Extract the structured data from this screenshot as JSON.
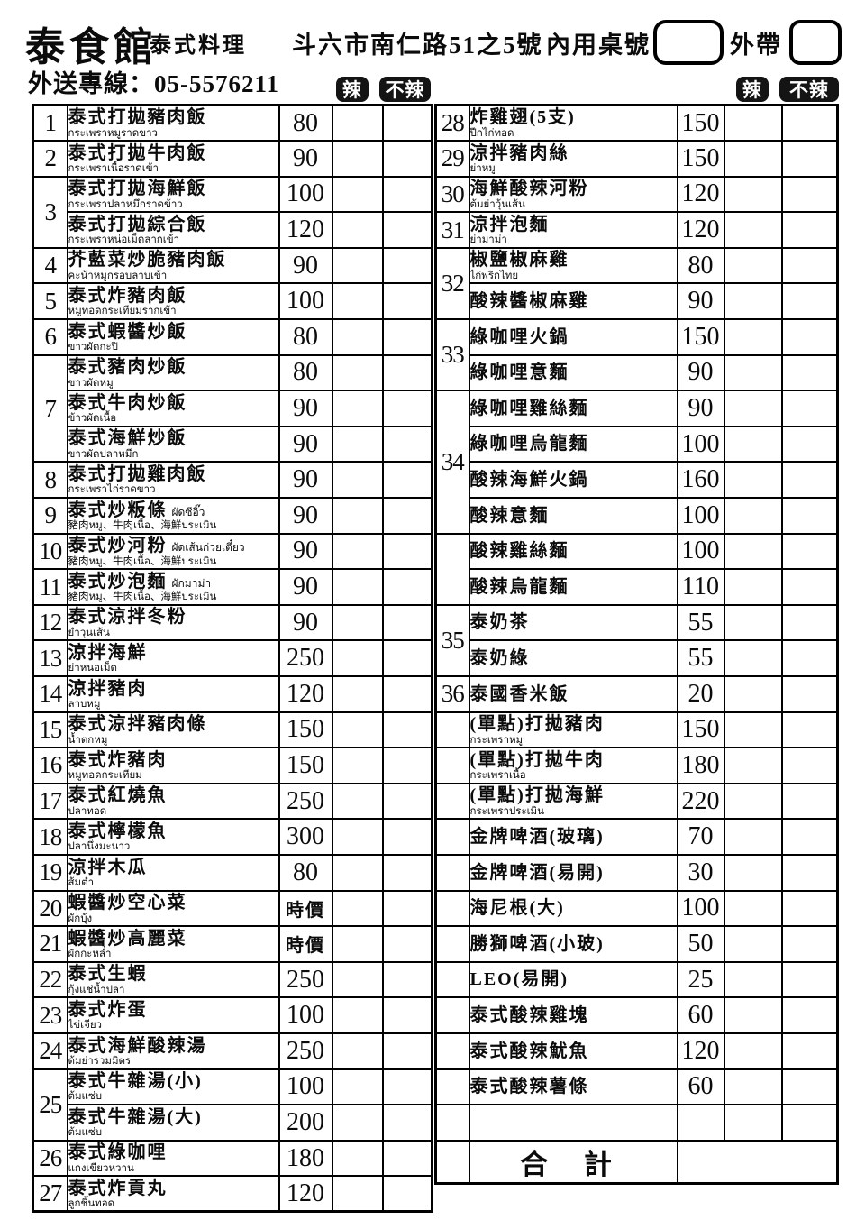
{
  "header": {
    "restaurant_name": "泰食館",
    "cuisine": "泰式料理",
    "address": "斗六市南仁路51之5號",
    "dine_in_label": "內用桌號",
    "takeout_label": "外帶",
    "delivery_label": "外送專線：05-5576211",
    "spicy_label": "辣",
    "not_spicy_label": "不辣"
  },
  "left_menu": {
    "groups": [
      {
        "num": "1",
        "rows": [
          {
            "name": "泰式打拋豬肉飯",
            "sub": "กระเพราหมูราดขาว",
            "price": "80"
          }
        ]
      },
      {
        "num": "2",
        "rows": [
          {
            "name": "泰式打拋牛肉飯",
            "sub": "กระเพราเนื้อราดเข้า",
            "price": "90"
          }
        ]
      },
      {
        "num": "3",
        "rows": [
          {
            "name": "泰式打拋海鮮飯",
            "sub": "กระเพราปลาหมึกราดข้าว",
            "price": "100"
          },
          {
            "name": "泰式打拋綜合飯",
            "sub": "กระเพราหน่อเม็ดลากเข้า",
            "price": "120"
          }
        ]
      },
      {
        "num": "4",
        "rows": [
          {
            "name": "芥藍菜炒脆豬肉飯",
            "sub": "คะน้าหมูกรอบลาบเข้า",
            "price": "90"
          }
        ]
      },
      {
        "num": "5",
        "rows": [
          {
            "name": "泰式炸豬肉飯",
            "sub": "หมูทอดกระเทียมรากเข้า",
            "price": "100"
          }
        ]
      },
      {
        "num": "6",
        "rows": [
          {
            "name": "泰式蝦醬炒飯",
            "sub": "ขาวผัดกะปิ",
            "price": "80"
          }
        ]
      },
      {
        "num": "7",
        "rows": [
          {
            "name": "泰式豬肉炒飯",
            "sub": "ขาวผัดหมู",
            "price": "80"
          },
          {
            "name": "泰式牛肉炒飯",
            "sub": "ข้าวผัดเนื้อ",
            "price": "90"
          },
          {
            "name": "泰式海鮮炒飯",
            "sub": "ขาวผัดปลาหมึก",
            "price": "90"
          }
        ]
      },
      {
        "num": "8",
        "rows": [
          {
            "name": "泰式打拋雞肉飯",
            "sub": "กระเพราไก่ราดขาว",
            "price": "90"
          }
        ]
      },
      {
        "num": "9",
        "rows": [
          {
            "name": "泰式炒粄條",
            "note": "ผัดซีอิ๊ว",
            "sub": "豬肉หมู、牛肉เนื้อ、海鮮ประเมิน",
            "price": "90"
          }
        ]
      },
      {
        "num": "10",
        "rows": [
          {
            "name": "泰式炒河粉",
            "note": "ผัดเส้นก่วยเตี๋ยว",
            "sub": "豬肉หมู、牛肉เนื้อ、海鮮ประเมิน",
            "price": "90"
          }
        ]
      },
      {
        "num": "11",
        "rows": [
          {
            "name": "泰式炒泡麵",
            "note": "ผักมาม่า",
            "sub": "豬肉หมู、牛肉เนื้อ、海鮮ประเมิน",
            "price": "90"
          }
        ]
      },
      {
        "num": "12",
        "rows": [
          {
            "name": "泰式涼拌冬粉",
            "sub": "ยำวุนเส้น",
            "price": "90"
          }
        ]
      },
      {
        "num": "13",
        "rows": [
          {
            "name": "涼拌海鮮",
            "sub": "ย่าหนอเม็ด",
            "price": "250"
          }
        ]
      },
      {
        "num": "14",
        "rows": [
          {
            "name": "涼拌豬肉",
            "sub": "ลาบหมู",
            "price": "120"
          }
        ]
      },
      {
        "num": "15",
        "rows": [
          {
            "name": "泰式涼拌豬肉條",
            "sub": "น้ำตกหมู",
            "price": "150"
          }
        ]
      },
      {
        "num": "16",
        "rows": [
          {
            "name": "泰式炸豬肉",
            "sub": "หมูทอดกระเทียม",
            "price": "150"
          }
        ]
      },
      {
        "num": "17",
        "rows": [
          {
            "name": "泰式紅燒魚",
            "sub": "ปลาทอด",
            "price": "250"
          }
        ]
      },
      {
        "num": "18",
        "rows": [
          {
            "name": "泰式檸檬魚",
            "sub": "ปลานึ่งมะนาว",
            "price": "300"
          }
        ]
      },
      {
        "num": "19",
        "rows": [
          {
            "name": "涼拌木瓜",
            "sub": "ส้มตำ",
            "price": "80"
          }
        ]
      },
      {
        "num": "20",
        "rows": [
          {
            "name": "蝦醬炒空心菜",
            "sub": "ผักบุ้ง",
            "price": "時價"
          }
        ]
      },
      {
        "num": "21",
        "rows": [
          {
            "name": "蝦醬炒高麗菜",
            "sub": "ผักกะหล่ำ",
            "price": "時價"
          }
        ]
      },
      {
        "num": "22",
        "rows": [
          {
            "name": "泰式生蝦",
            "sub": "กุ้งแช่น้ำปลา",
            "price": "250"
          }
        ]
      },
      {
        "num": "23",
        "rows": [
          {
            "name": "泰式炸蛋",
            "sub": "ไข่เจียว",
            "price": "100"
          }
        ]
      },
      {
        "num": "24",
        "rows": [
          {
            "name": "泰式海鮮酸辣湯",
            "sub": "ต้มย่ารวมมิตร",
            "price": "250"
          }
        ]
      },
      {
        "num": "25",
        "rows": [
          {
            "name": "泰式牛雜湯(小)",
            "sub": "ต้มแซ่บ",
            "price": "100"
          },
          {
            "name": "泰式牛雜湯(大)",
            "sub": "ต้มแซ่บ",
            "price": "200"
          }
        ]
      },
      {
        "num": "26",
        "rows": [
          {
            "name": "泰式綠咖哩",
            "sub": "แกงเขียวหวาน",
            "price": "180"
          }
        ]
      },
      {
        "num": "27",
        "rows": [
          {
            "name": "泰式炸貢丸",
            "sub": "ลูกชิ้นทอด",
            "price": "120"
          }
        ]
      }
    ]
  },
  "right_menu": {
    "groups": [
      {
        "num": "28",
        "rows": [
          {
            "name": "炸雞翅(5支)",
            "sub": "ปีกไก่ทอด",
            "price": "150"
          }
        ]
      },
      {
        "num": "29",
        "rows": [
          {
            "name": "涼拌豬肉絲",
            "sub": "ย่าหมู",
            "price": "150"
          }
        ]
      },
      {
        "num": "30",
        "rows": [
          {
            "name": "海鮮酸辣河粉",
            "sub": "ต้มย่าวุ้นเส้น",
            "price": "120"
          }
        ]
      },
      {
        "num": "31",
        "rows": [
          {
            "name": "涼拌泡麵",
            "sub": "ย่ามาม่า",
            "price": "120"
          }
        ]
      },
      {
        "num": "32",
        "rows": [
          {
            "name": "椒鹽椒麻雞",
            "sub": "ไก่พริกไทย",
            "price": "80"
          },
          {
            "name": "酸辣醬椒麻雞",
            "price": "90"
          }
        ]
      },
      {
        "num": "33",
        "rows": [
          {
            "name": "綠咖哩火鍋",
            "price": "150"
          },
          {
            "name": "綠咖哩意麵",
            "price": "90"
          }
        ]
      },
      {
        "num": "34",
        "rows": [
          {
            "name": "綠咖哩雞絲麵",
            "price": "90"
          },
          {
            "name": "綠咖哩烏龍麵",
            "price": "100"
          },
          {
            "name": "酸辣海鮮火鍋",
            "price": "160"
          },
          {
            "name": "酸辣意麵",
            "price": "100"
          }
        ]
      },
      {
        "num": "",
        "rows": [
          {
            "name": "酸辣雞絲麵",
            "price": "100"
          },
          {
            "name": "酸辣烏龍麵",
            "price": "110"
          }
        ]
      },
      {
        "num": "35",
        "rows": [
          {
            "name": "泰奶茶",
            "price": "55"
          },
          {
            "name": "泰奶綠",
            "price": "55"
          }
        ]
      },
      {
        "num": "36",
        "rows": [
          {
            "name": "泰國香米飯",
            "price": "20"
          }
        ]
      },
      {
        "num": "",
        "rows": [
          {
            "name": "(單點)打拋豬肉",
            "sub": "กระเพราหมู",
            "price": "150"
          }
        ]
      },
      {
        "num": "",
        "rows": [
          {
            "name": "(單點)打拋牛肉",
            "sub": "กระเพราเนื้อ",
            "price": "180"
          }
        ]
      },
      {
        "num": "",
        "rows": [
          {
            "name": "(單點)打拋海鮮",
            "sub": "กระเพราประเมิน",
            "price": "220"
          }
        ]
      },
      {
        "num": "",
        "rows": [
          {
            "name": "金牌啤酒(玻璃)",
            "price": "70"
          }
        ]
      },
      {
        "num": "",
        "rows": [
          {
            "name": "金牌啤酒(易開)",
            "price": "30"
          }
        ]
      },
      {
        "num": "",
        "rows": [
          {
            "name": "海尼根(大)",
            "price": "100"
          }
        ]
      },
      {
        "num": "",
        "rows": [
          {
            "name": "勝獅啤酒(小玻)",
            "price": "50"
          }
        ]
      },
      {
        "num": "",
        "rows": [
          {
            "name": "LEO(易開)",
            "price": "25"
          }
        ]
      },
      {
        "num": "",
        "rows": [
          {
            "name": "泰式酸辣雞塊",
            "price": "60"
          }
        ]
      },
      {
        "num": "",
        "rows": [
          {
            "name": "泰式酸辣魷魚",
            "price": "120"
          }
        ]
      },
      {
        "num": "",
        "rows": [
          {
            "name": "泰式酸辣薯條",
            "price": "60"
          }
        ]
      },
      {
        "num": "",
        "rows": [
          {
            "name": "",
            "price": ""
          }
        ]
      }
    ],
    "footer": {
      "total_label": "合 計"
    }
  }
}
